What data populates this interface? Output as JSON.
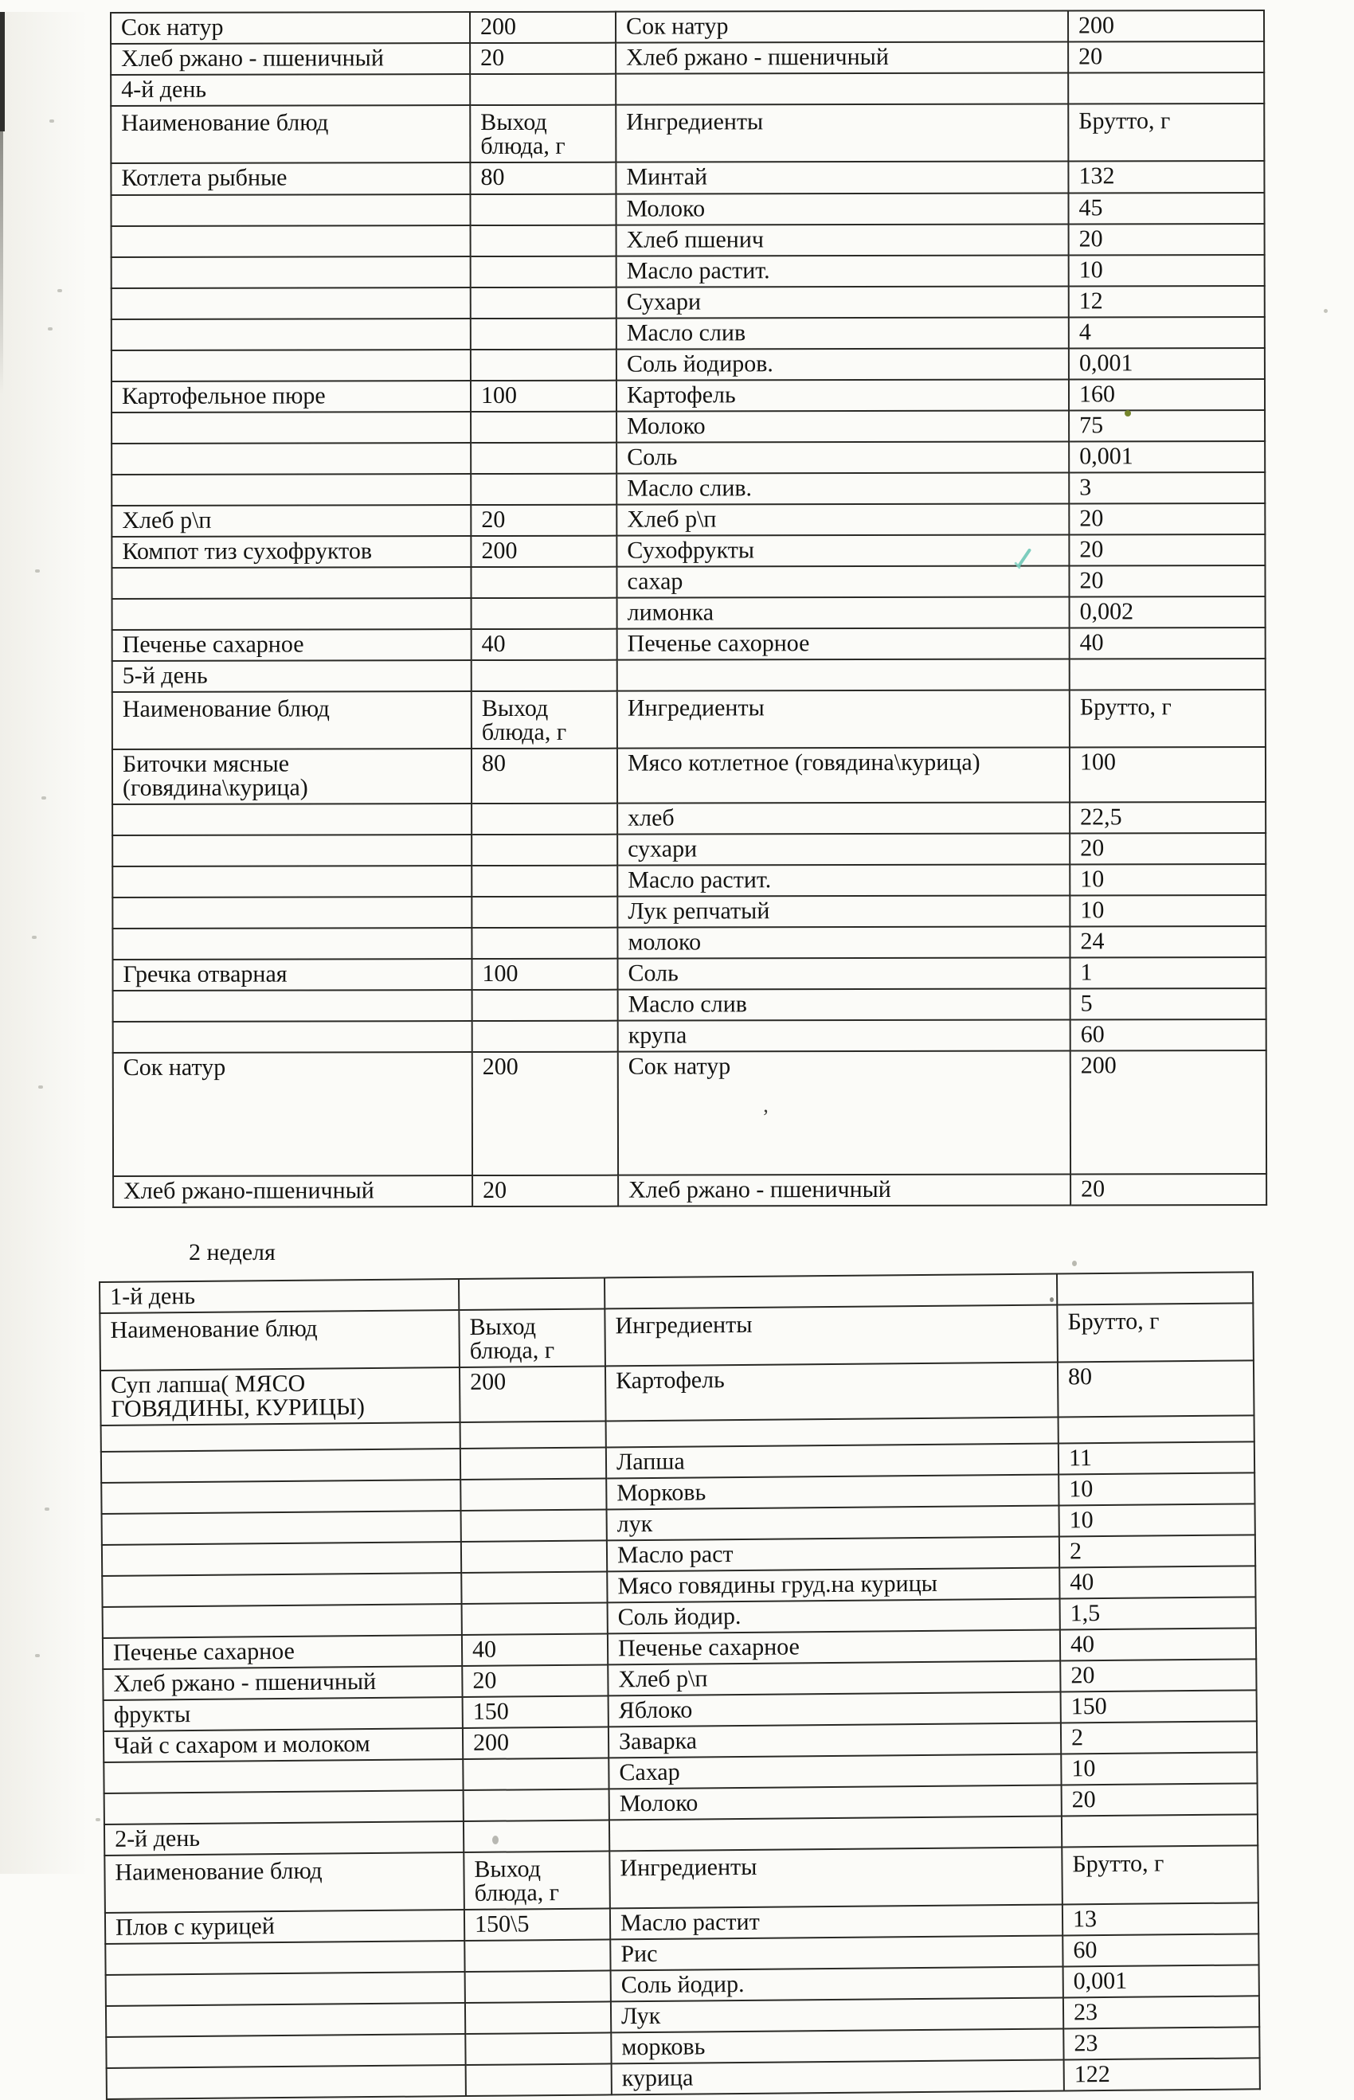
{
  "document": {
    "type": "scanned menu table",
    "week2_label": "2 неделя"
  },
  "columns": [
    "Наименование блюд",
    "Выход блюда, г",
    "Ингредиенты",
    "Брутто, г"
  ],
  "table1": {
    "rows": [
      {
        "type": "item",
        "variant": "top1",
        "dish": "Сок натур",
        "out": "200",
        "ing": "Сок натур",
        "g": "200"
      },
      {
        "type": "item",
        "variant": "top2",
        "dish": "Хлеб ржано - пшеничный",
        "out": "20",
        "ing": "Хлеб ржано - пшеничный",
        "g": "20"
      },
      {
        "type": "day",
        "dish": "4-й день"
      },
      {
        "type": "header"
      },
      {
        "type": "item",
        "variant": "first",
        "dish": "Котлета рыбные",
        "out": "80",
        "ing": "Минтай",
        "g": "132"
      },
      {
        "type": "item",
        "ing": "Молоко",
        "g": "45"
      },
      {
        "type": "item",
        "ing": "Хлеб пшенич",
        "g": "20"
      },
      {
        "type": "item",
        "ing": "Масло растит.",
        "g": "10"
      },
      {
        "type": "item",
        "ing": "Сухари",
        "g": "12"
      },
      {
        "type": "item",
        "ing": "Масло слив",
        "g": "4"
      },
      {
        "type": "item",
        "ing": "Соль йодиров.",
        "g": "0,001"
      },
      {
        "type": "item",
        "dish": "Картофельное пюре",
        "out": "100",
        "ing": "Картофель",
        "g": "160"
      },
      {
        "type": "item",
        "ing": "Молоко",
        "g": "75"
      },
      {
        "type": "item",
        "ing": "Соль",
        "g": "0,001"
      },
      {
        "type": "item",
        "ing": "Масло слив.",
        "g": "3"
      },
      {
        "type": "item",
        "dish": "Хлеб р\\п",
        "out": "20",
        "ing": "Хлеб р\\п",
        "g": "20"
      },
      {
        "type": "item",
        "dish": "Компот тиз сухофруктов",
        "out": "200",
        "ing": "Сухофрукты",
        "g": "20"
      },
      {
        "type": "item",
        "ing": "сахар",
        "g": "20"
      },
      {
        "type": "item",
        "ing": "лимонка",
        "g": "0,002"
      },
      {
        "type": "item",
        "dish": "Печенье сахарное",
        "out": "40",
        "ing": "Печенье сахорное",
        "g": "40"
      },
      {
        "type": "day",
        "dish": "5-й день"
      },
      {
        "type": "header"
      },
      {
        "type": "item",
        "dish": "Биточки мясные (говядина\\курица)",
        "out": "80",
        "ing": "Мясо котлетное (говядина\\курица)",
        "g": "100"
      },
      {
        "type": "item",
        "ing": "хлеб",
        "g": "22,5"
      },
      {
        "type": "item",
        "ing": "сухари",
        "g": "20"
      },
      {
        "type": "item",
        "ing": "Масло растит.",
        "g": "10"
      },
      {
        "type": "item",
        "ing": "Лук репчатый",
        "g": "10"
      },
      {
        "type": "item",
        "ing": "молоко",
        "g": "24"
      },
      {
        "type": "item",
        "dish": "Гречка отварная",
        "out": "100",
        "ing": "Соль",
        "g": "1"
      },
      {
        "type": "item",
        "ing": "Масло слив",
        "g": "5"
      },
      {
        "type": "item",
        "ing": "крупа",
        "g": "60"
      },
      {
        "type": "item",
        "variant": "tall",
        "dish": "Сок натур",
        "out": "200",
        "ing": "Сок натур",
        "g": "200"
      },
      {
        "type": "item",
        "variant": "last",
        "dish": "Хлеб ржано-пшеничный",
        "out": "20",
        "ing": "Хлеб ржано - пшеничный",
        "g": "20"
      }
    ]
  },
  "table2": {
    "rows": [
      {
        "type": "day",
        "dish": "1-й день"
      },
      {
        "type": "header"
      },
      {
        "type": "item",
        "variant": "soup",
        "dish": "Суп лапша( МЯСО ГОВЯДИНЫ, КУРИЦЫ)",
        "out": "200",
        "ing": "Картофель",
        "g": "80"
      },
      {
        "type": "spacer"
      },
      {
        "type": "item",
        "ing": "Лапша",
        "g": "11"
      },
      {
        "type": "item",
        "ing": "Морковь",
        "g": "10"
      },
      {
        "type": "item",
        "ing": "лук",
        "g": "10"
      },
      {
        "type": "item",
        "ing": "Масло раст",
        "g": "2"
      },
      {
        "type": "item",
        "ing": "Мясо говядины груд.на курицы",
        "g": "40"
      },
      {
        "type": "item",
        "ing": "Соль йодир.",
        "g": "1,5"
      },
      {
        "type": "item",
        "dish": "Печенье сахарное",
        "out": "40",
        "ing": "Печенье сахарное",
        "g": "40"
      },
      {
        "type": "item",
        "dish": "Хлеб ржано - пшеничный",
        "out": "20",
        "ing": "Хлеб р\\п",
        "g": "20"
      },
      {
        "type": "item",
        "dish": "фрукты",
        "out": "150",
        "ing": "Яблоко",
        "g": "150"
      },
      {
        "type": "item",
        "dish": "Чай с сахаром и молоком",
        "out": "200",
        "ing": "Заварка",
        "g": "2"
      },
      {
        "type": "item",
        "ing": "Сахар",
        "g": "10"
      },
      {
        "type": "item",
        "ing": "Молоко",
        "g": "20"
      },
      {
        "type": "day",
        "dish": "2-й день"
      },
      {
        "type": "header"
      },
      {
        "type": "item",
        "dish": "Плов с курицей",
        "out": "150\\5",
        "ing": "Масло растит",
        "g": "13"
      },
      {
        "type": "item",
        "ing": "Рис",
        "g": "60"
      },
      {
        "type": "item",
        "ing": "Соль йодир.",
        "g": "0,001"
      },
      {
        "type": "item",
        "ing": "Лук",
        "g": "23"
      },
      {
        "type": "item",
        "ing": "морковь",
        "g": "23"
      },
      {
        "type": "item",
        "ing": "курица",
        "g": "122"
      }
    ]
  },
  "scan_marks": {
    "green_dot_color": "#76862c",
    "teal_check_color": "#66c4b4",
    "pencil_speck_color": "#a8a8a0",
    "apostrophe_glyph": "’"
  }
}
